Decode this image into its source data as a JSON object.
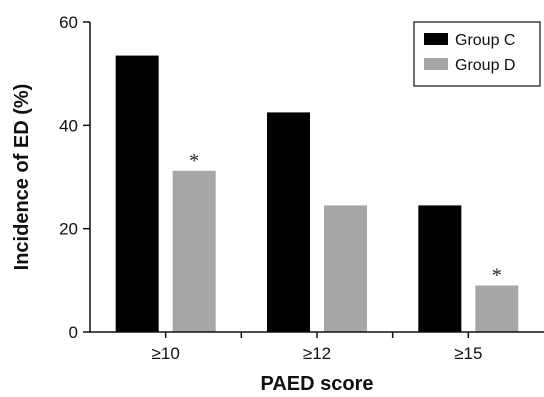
{
  "chart_data": {
    "type": "bar",
    "categories": [
      "≥10",
      "≥12",
      "≥15"
    ],
    "series": [
      {
        "name": "Group C",
        "values": [
          53.5,
          42.5,
          24.5
        ],
        "color": "#000000"
      },
      {
        "name": "Group D",
        "values": [
          31.2,
          24.5,
          9.0
        ],
        "color": "#a6a6a6"
      }
    ],
    "annotations": [
      {
        "series": 1,
        "category": 0,
        "text": "*"
      },
      {
        "series": 1,
        "category": 2,
        "text": "*"
      }
    ],
    "xlabel": "PAED score",
    "ylabel": "Incidence of ED (%)",
    "ylim": [
      0,
      60
    ],
    "yticks": [
      0,
      20,
      40,
      60
    ],
    "legend_position": "top-right",
    "grid": false
  }
}
